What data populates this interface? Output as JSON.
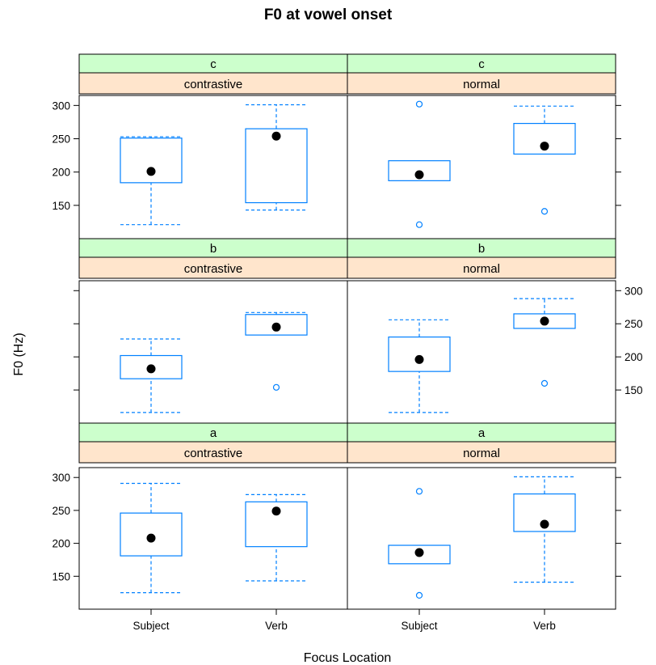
{
  "chart_data": {
    "type": "box",
    "title": "F0 at vowel onset",
    "xlabel": "Focus Location",
    "ylabel": "F0 (Hz)",
    "categories": [
      "Subject",
      "Verb"
    ],
    "ylim": [
      100,
      315
    ],
    "yticks": [
      150,
      200,
      250,
      300
    ],
    "layout": {
      "columns": 2,
      "rows": 3
    },
    "colors": {
      "strip_outer": "#ccffcc",
      "strip_inner": "#ffe5cc",
      "box": "#0080ff",
      "median_dot": "#000000"
    },
    "panels": [
      {
        "level": "c",
        "focus": "contrastive",
        "boxes": [
          {
            "category": "Subject",
            "min": 121,
            "q1": 184,
            "median": 201,
            "q3": 251,
            "max": 253,
            "outliers": []
          },
          {
            "category": "Verb",
            "min": 143,
            "q1": 154,
            "median": 254,
            "q3": 265,
            "max": 301,
            "outliers": []
          }
        ]
      },
      {
        "level": "c",
        "focus": "normal",
        "boxes": [
          {
            "category": "Subject",
            "min": 187,
            "q1": 187,
            "median": 196,
            "q3": 217,
            "max": 217,
            "outliers": [
              121,
              302
            ]
          },
          {
            "category": "Verb",
            "min": 227,
            "q1": 227,
            "median": 239,
            "q3": 273,
            "max": 299,
            "outliers": [
              141
            ]
          }
        ]
      },
      {
        "level": "b",
        "focus": "contrastive",
        "boxes": [
          {
            "category": "Subject",
            "min": 116,
            "q1": 167,
            "median": 182,
            "q3": 202,
            "max": 227,
            "outliers": []
          },
          {
            "category": "Verb",
            "min": 233,
            "q1": 233,
            "median": 245,
            "q3": 264,
            "max": 267,
            "outliers": [
              154
            ]
          }
        ]
      },
      {
        "level": "b",
        "focus": "normal",
        "boxes": [
          {
            "category": "Subject",
            "min": 116,
            "q1": 178,
            "median": 196,
            "q3": 230,
            "max": 256,
            "outliers": []
          },
          {
            "category": "Verb",
            "min": 243,
            "q1": 243,
            "median": 254,
            "q3": 265,
            "max": 288,
            "outliers": [
              160
            ]
          }
        ]
      },
      {
        "level": "a",
        "focus": "contrastive",
        "boxes": [
          {
            "category": "Subject",
            "min": 125,
            "q1": 181,
            "median": 208,
            "q3": 246,
            "max": 291,
            "outliers": []
          },
          {
            "category": "Verb",
            "min": 143,
            "q1": 195,
            "median": 249,
            "q3": 263,
            "max": 274,
            "outliers": []
          }
        ]
      },
      {
        "level": "a",
        "focus": "normal",
        "boxes": [
          {
            "category": "Subject",
            "min": 169,
            "q1": 169,
            "median": 186,
            "q3": 197,
            "max": 197,
            "outliers": [
              121,
              279
            ]
          },
          {
            "category": "Verb",
            "min": 141,
            "q1": 218,
            "median": 229,
            "q3": 275,
            "max": 301,
            "outliers": []
          }
        ]
      }
    ]
  }
}
